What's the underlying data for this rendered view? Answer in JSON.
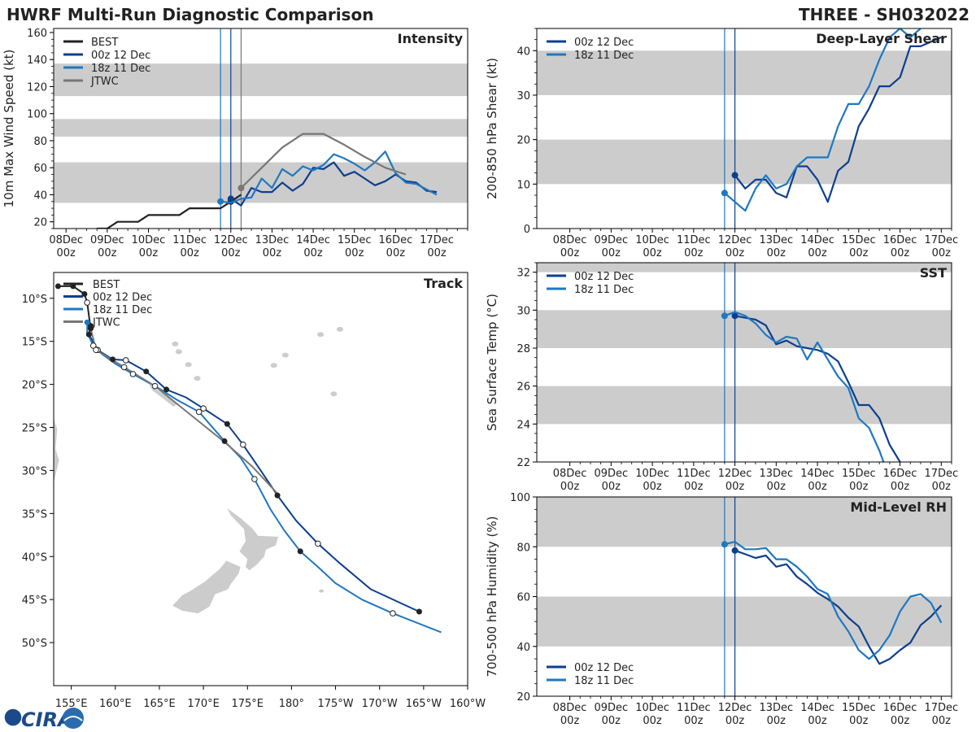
{
  "header": {
    "title_left": "HWRF Multi-Run Diagnostic Comparison",
    "title_right": "THREE - SH032022"
  },
  "colors": {
    "best": "#222222",
    "run1": "#0d3f8f",
    "run2": "#1f78c1",
    "jtwc": "#777777",
    "band": "#cccccc",
    "axis": "#000000"
  },
  "logo": {
    "text": "CIRA"
  },
  "time_ticks": [
    "08Dec\n00z",
    "09Dec\n00z",
    "10Dec\n00z",
    "11Dec\n00z",
    "12Dec\n00z",
    "13Dec\n00z",
    "14Dec\n00z",
    "15Dec\n00z",
    "16Dec\n00z",
    "17Dec\n00z"
  ],
  "chart_data": [
    {
      "id": "intensity",
      "type": "line",
      "title": "Intensity",
      "ylabel": "10m Max Wind Speed (kt)",
      "xlim": [
        -0.3,
        9.75
      ],
      "ylim": [
        15,
        163
      ],
      "yticks": [
        20,
        40,
        60,
        80,
        100,
        120,
        140,
        160
      ],
      "bands": [
        [
          34,
          64
        ],
        [
          83,
          96
        ],
        [
          113,
          137
        ]
      ],
      "vlines": [
        {
          "x": 3.75,
          "color": "run2"
        },
        {
          "x": 4.0,
          "color": "run1"
        },
        {
          "x": 4.25,
          "color": "jtwc"
        }
      ],
      "legend": [
        "BEST",
        "00z 12 Dec",
        "18z 11 Dec",
        "JTWC"
      ],
      "series": [
        {
          "name": "BEST",
          "color": "best",
          "x": [
            0.75,
            1.0,
            1.25,
            1.5,
            1.75,
            2.0,
            2.25,
            2.5,
            2.75,
            3.0,
            3.25,
            3.5,
            3.75,
            4.0,
            4.25
          ],
          "y": [
            15,
            15,
            20,
            20,
            20,
            25,
            25,
            25,
            25,
            30,
            30,
            30,
            30,
            35,
            40
          ],
          "marker_at": 4.0
        },
        {
          "name": "00z 12 Dec",
          "color": "run1",
          "x": [
            4.0,
            4.25,
            4.5,
            4.75,
            5.0,
            5.25,
            5.5,
            5.75,
            6.0,
            6.25,
            6.5,
            6.75,
            7.0,
            7.25,
            7.5,
            7.75,
            8.0,
            8.25,
            8.5,
            8.75,
            9.0
          ],
          "y": [
            37,
            32,
            45,
            42,
            42,
            49,
            43,
            48,
            60,
            59,
            64,
            54,
            57,
            52,
            47,
            50,
            55,
            50,
            49,
            43,
            42
          ],
          "marker_at": 4.0
        },
        {
          "name": "18z 11 Dec",
          "color": "run2",
          "x": [
            3.75,
            4.0,
            4.25,
            4.5,
            4.75,
            5.0,
            5.25,
            5.5,
            5.75,
            6.0,
            6.25,
            6.5,
            6.75,
            7.0,
            7.25,
            7.5,
            7.75,
            8.0,
            8.25,
            8.5,
            8.75,
            9.0
          ],
          "y": [
            35,
            34,
            37,
            38,
            52,
            45,
            59,
            54,
            61,
            58,
            62,
            70,
            67,
            63,
            58,
            64,
            72,
            56,
            49,
            48,
            44,
            40
          ],
          "marker_at": 3.75
        },
        {
          "name": "JTWC",
          "color": "jtwc",
          "x": [
            4.25,
            4.75,
            5.25,
            5.75,
            6.25,
            6.75,
            7.25,
            7.75,
            8.25
          ],
          "y": [
            45,
            60,
            75,
            85,
            85,
            77,
            68,
            60,
            55
          ],
          "marker_at": 4.25
        }
      ]
    },
    {
      "id": "shear",
      "type": "line",
      "title": "Deep-Layer Shear",
      "ylabel": "200-850 hPa Shear (kt)",
      "xlim": [
        -0.8,
        9.25
      ],
      "ylim": [
        0,
        45
      ],
      "yticks": [
        0,
        10,
        20,
        30,
        40
      ],
      "bands": [
        [
          10,
          20
        ],
        [
          30,
          40
        ]
      ],
      "vlines": [
        {
          "x": 3.75,
          "color": "run2"
        },
        {
          "x": 4.0,
          "color": "run1"
        }
      ],
      "legend": [
        "00z 12 Dec",
        "18z 11 Dec"
      ],
      "series": [
        {
          "name": "00z 12 Dec",
          "color": "run1",
          "x": [
            4.0,
            4.25,
            4.5,
            4.75,
            5.0,
            5.25,
            5.5,
            5.75,
            6.0,
            6.25,
            6.5,
            6.75,
            7.0,
            7.25,
            7.5,
            7.75,
            8.0,
            8.25,
            8.5,
            8.75,
            9.0
          ],
          "y": [
            12,
            9,
            11,
            11,
            8,
            7,
            14,
            14,
            11,
            6,
            13,
            15,
            23,
            27,
            32,
            32,
            34,
            41,
            41,
            42,
            43
          ],
          "marker_at": 4.0
        },
        {
          "name": "18z 11 Dec",
          "color": "run2",
          "x": [
            3.75,
            4.0,
            4.25,
            4.5,
            4.75,
            5.0,
            5.25,
            5.5,
            5.75,
            6.0,
            6.25,
            6.5,
            6.75,
            7.0,
            7.25,
            7.5,
            7.75,
            8.0,
            8.25,
            8.5
          ],
          "y": [
            8,
            6,
            4,
            9,
            12,
            9,
            10,
            14,
            16,
            16,
            16,
            23,
            28,
            28,
            32,
            38,
            43,
            45,
            43,
            45
          ],
          "marker_at": 3.75
        }
      ]
    },
    {
      "id": "track",
      "type": "map_track",
      "title": "Track",
      "xlim": [
        153,
        200
      ],
      "ylim": [
        -55,
        -7
      ],
      "lon_ticks": [
        155,
        160,
        165,
        170,
        175,
        180,
        185,
        190,
        195,
        200
      ],
      "lon_labels": [
        "155°E",
        "160°E",
        "165°E",
        "170°E",
        "175°E",
        "180°",
        "175°W",
        "170°W",
        "165°W",
        "160°W"
      ],
      "lat_ticks": [
        -10,
        -15,
        -20,
        -25,
        -30,
        -35,
        -40,
        -45,
        -50
      ],
      "lat_labels": [
        "10°S",
        "15°S",
        "20°S",
        "25°S",
        "30°S",
        "35°S",
        "40°S",
        "45°S",
        "50°S"
      ],
      "legend": [
        "BEST",
        "00z 12 Dec",
        "18z 11 Dec",
        "JTWC"
      ],
      "series": [
        {
          "name": "BEST",
          "color": "best",
          "lon": [
            153.5,
            155.2,
            156.5,
            156.8,
            157.0,
            157.2
          ],
          "lat": [
            -8.6,
            -8.6,
            -9.5,
            -10.5,
            -12.0,
            -13.5
          ],
          "filled": [
            0,
            1,
            2,
            5
          ],
          "hollow": [
            3
          ]
        },
        {
          "name": "00z 12 Dec",
          "color": "run1",
          "lon": [
            157.2,
            157.0,
            158.0,
            159.7,
            161.2,
            163.5,
            165.8,
            168.0,
            170.0,
            172.7,
            174.5,
            176.5,
            178.4,
            180.5,
            183.0,
            185.5,
            189.0,
            194.5
          ],
          "lat": [
            -13.2,
            -14.2,
            -16.0,
            -17.1,
            -17.2,
            -18.5,
            -20.6,
            -21.5,
            -22.8,
            -24.6,
            -27.0,
            -30.0,
            -32.9,
            -35.8,
            -38.5,
            -40.8,
            -43.8,
            -46.4
          ],
          "filled": [
            0,
            1,
            3,
            5,
            6,
            9,
            12,
            17
          ],
          "hollow": [
            2,
            4,
            8,
            10,
            14
          ]
        },
        {
          "name": "18z 11 Dec",
          "color": "run2",
          "lon": [
            156.8,
            156.8,
            157.5,
            158.5,
            160.0,
            162.0,
            165.0,
            167.0,
            169.5,
            172.4,
            174.2,
            175.8,
            177.6,
            179.2,
            181.0,
            183.0,
            185.0,
            188.0,
            191.5,
            197.0
          ],
          "lat": [
            -12.8,
            -14.0,
            -15.5,
            -16.5,
            -17.6,
            -18.8,
            -20.5,
            -21.8,
            -23.2,
            -26.6,
            -28.5,
            -31.0,
            -34.5,
            -37.0,
            -39.4,
            -41.2,
            -43.1,
            -45.0,
            -46.6,
            -48.8
          ],
          "filled": [
            0,
            9,
            14
          ],
          "hollow": [
            2,
            5,
            8,
            11,
            18
          ]
        },
        {
          "name": "JTWC",
          "color": "jtwc",
          "lon": [
            157.2,
            157.8,
            161.0,
            164.5,
            168.5,
            172.5,
            175.5,
            178.5
          ],
          "lat": [
            -13.5,
            -16.0,
            -18.0,
            -20.2,
            -23.5,
            -26.8,
            -29.5,
            -32.8
          ],
          "filled": [
            0
          ],
          "hollow": [
            1,
            2,
            3
          ]
        }
      ]
    },
    {
      "id": "sst",
      "type": "line",
      "title": "SST",
      "ylabel": "Sea Surface Temp (°C)",
      "xlim": [
        -0.8,
        9.25
      ],
      "ylim": [
        22,
        32.5
      ],
      "yticks": [
        22,
        24,
        26,
        28,
        30,
        32
      ],
      "bands": [
        [
          24,
          26
        ],
        [
          28,
          30
        ],
        [
          32,
          32.5
        ]
      ],
      "vlines": [
        {
          "x": 3.75,
          "color": "run2"
        },
        {
          "x": 4.0,
          "color": "run1"
        }
      ],
      "legend": [
        "00z 12 Dec",
        "18z 11 Dec"
      ],
      "series": [
        {
          "name": "00z 12 Dec",
          "color": "run1",
          "x": [
            4.0,
            4.25,
            4.5,
            4.75,
            5.0,
            5.25,
            5.5,
            5.75,
            6.0,
            6.25,
            6.5,
            6.75,
            7.0,
            7.25,
            7.5,
            7.75,
            8.0
          ],
          "y": [
            29.7,
            29.6,
            29.5,
            29.2,
            28.2,
            28.4,
            28.1,
            28.0,
            27.9,
            27.7,
            27.3,
            26.2,
            25.0,
            25.0,
            24.3,
            22.9,
            22.0
          ],
          "marker_at": 4.0
        },
        {
          "name": "18z 11 Dec",
          "color": "run2",
          "x": [
            3.75,
            4.0,
            4.25,
            4.5,
            4.75,
            5.0,
            5.25,
            5.5,
            5.75,
            6.0,
            6.25,
            6.5,
            6.75,
            7.0,
            7.25,
            7.5,
            7.6
          ],
          "y": [
            29.7,
            29.9,
            29.7,
            29.3,
            28.7,
            28.3,
            28.6,
            28.5,
            27.4,
            28.3,
            27.4,
            26.5,
            25.9,
            24.3,
            23.8,
            22.6,
            22.0
          ],
          "marker_at": 3.75
        }
      ]
    },
    {
      "id": "rh",
      "type": "line",
      "title": "Mid-Level RH",
      "ylabel": "700-500 hPa Humidity (%)",
      "xlim": [
        -0.8,
        9.25
      ],
      "ylim": [
        20,
        100
      ],
      "yticks": [
        20,
        40,
        60,
        80,
        100
      ],
      "bands": [
        [
          40,
          60
        ],
        [
          80,
          100
        ]
      ],
      "vlines": [
        {
          "x": 3.75,
          "color": "run2"
        },
        {
          "x": 4.0,
          "color": "run1"
        }
      ],
      "legend": [
        "00z 12 Dec",
        "18z 11 Dec"
      ],
      "series": [
        {
          "name": "00z 12 Dec",
          "color": "run1",
          "x": [
            4.0,
            4.25,
            4.5,
            4.75,
            5.0,
            5.25,
            5.5,
            5.75,
            6.0,
            6.25,
            6.5,
            6.75,
            7.0,
            7.25,
            7.5,
            7.75,
            8.0,
            8.25,
            8.5,
            8.75,
            9.0
          ],
          "y": [
            78.5,
            77,
            75.5,
            76.5,
            72,
            73,
            68,
            65,
            61.5,
            59,
            56,
            51.5,
            48,
            40,
            33,
            35,
            38.5,
            41.5,
            48.5,
            52,
            56.5
          ],
          "marker_at": 4.0
        },
        {
          "name": "18z 11 Dec",
          "color": "run2",
          "x": [
            3.75,
            4.0,
            4.25,
            4.5,
            4.75,
            5.0,
            5.25,
            5.5,
            5.75,
            6.0,
            6.25,
            6.5,
            6.75,
            7.0,
            7.25,
            7.5,
            7.75,
            8.0,
            8.25,
            8.5,
            8.75,
            9.0
          ],
          "y": [
            81,
            82,
            79,
            79,
            79.5,
            75,
            75,
            72,
            68,
            63,
            61,
            52,
            46,
            38.5,
            35,
            38.5,
            44.5,
            54,
            60,
            61,
            57.5,
            49.5
          ],
          "marker_at": 3.75
        }
      ]
    }
  ]
}
